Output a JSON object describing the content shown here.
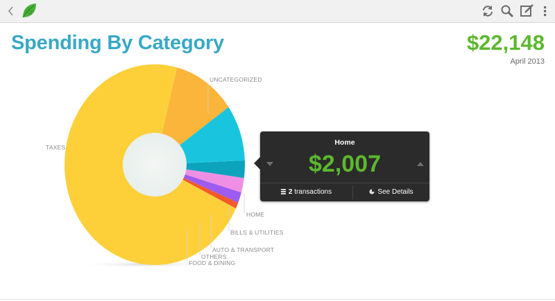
{
  "toolbar": {
    "icons": [
      "back-chevron-icon",
      "mint-leaf-logo-icon",
      "refresh-icon",
      "search-icon",
      "compose-icon",
      "overflow-menu-icon"
    ]
  },
  "header": {
    "title": "Spending By Category",
    "total": "$22,148",
    "period": "April 2013"
  },
  "colors": {
    "title": "#38a8c4",
    "total": "#5cb82e",
    "taxes": "#fdd03a",
    "uncategorized": "#fbb53a",
    "home": "#19c5de",
    "bills_utilities": "#0ba4bc",
    "auto_transport": "#ef8fe3",
    "others": "#9d5bef",
    "food_dining": "#f35a2b"
  },
  "chart_data": {
    "type": "pie",
    "title": "Spending By Category",
    "labels": [
      "TAXES",
      "UNCATEGORIZED",
      "HOME",
      "BILLS & UTILITIES",
      "AUTO & TRANSPORT",
      "OTHERS",
      "FOOD & DINING"
    ],
    "values": [
      15900,
      2500,
      2007,
      620,
      520,
      380,
      221
    ],
    "selected": "HOME",
    "donut": true
  },
  "tooltip": {
    "category": "Home",
    "amount": "$2,007",
    "transactions_count": "2",
    "transactions_label": "transactions",
    "details_label": "See Details"
  }
}
